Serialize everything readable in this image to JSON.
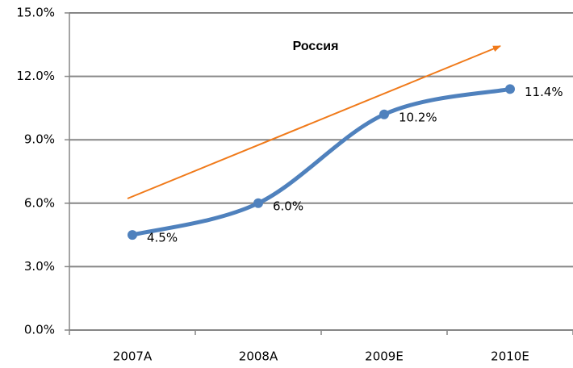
{
  "chart_data": {
    "type": "line",
    "title": "Россия",
    "categories": [
      "2007A",
      "2008A",
      "2009E",
      "2010E"
    ],
    "values": [
      4.5,
      6.0,
      10.2,
      11.4
    ],
    "value_labels": [
      "4.5%",
      "6.0%",
      "10.2%",
      "11.4%"
    ],
    "color": "#4f81bd",
    "ylim": [
      0,
      15
    ],
    "yticks": [
      {
        "value": 0,
        "label": "0.0%"
      },
      {
        "value": 3,
        "label": "3.0%"
      },
      {
        "value": 6,
        "label": "6.0%"
      },
      {
        "value": 9,
        "label": "9.0%"
      },
      {
        "value": 12,
        "label": "12.0%"
      },
      {
        "value": 15,
        "label": "15.0%"
      }
    ],
    "grid": true
  }
}
